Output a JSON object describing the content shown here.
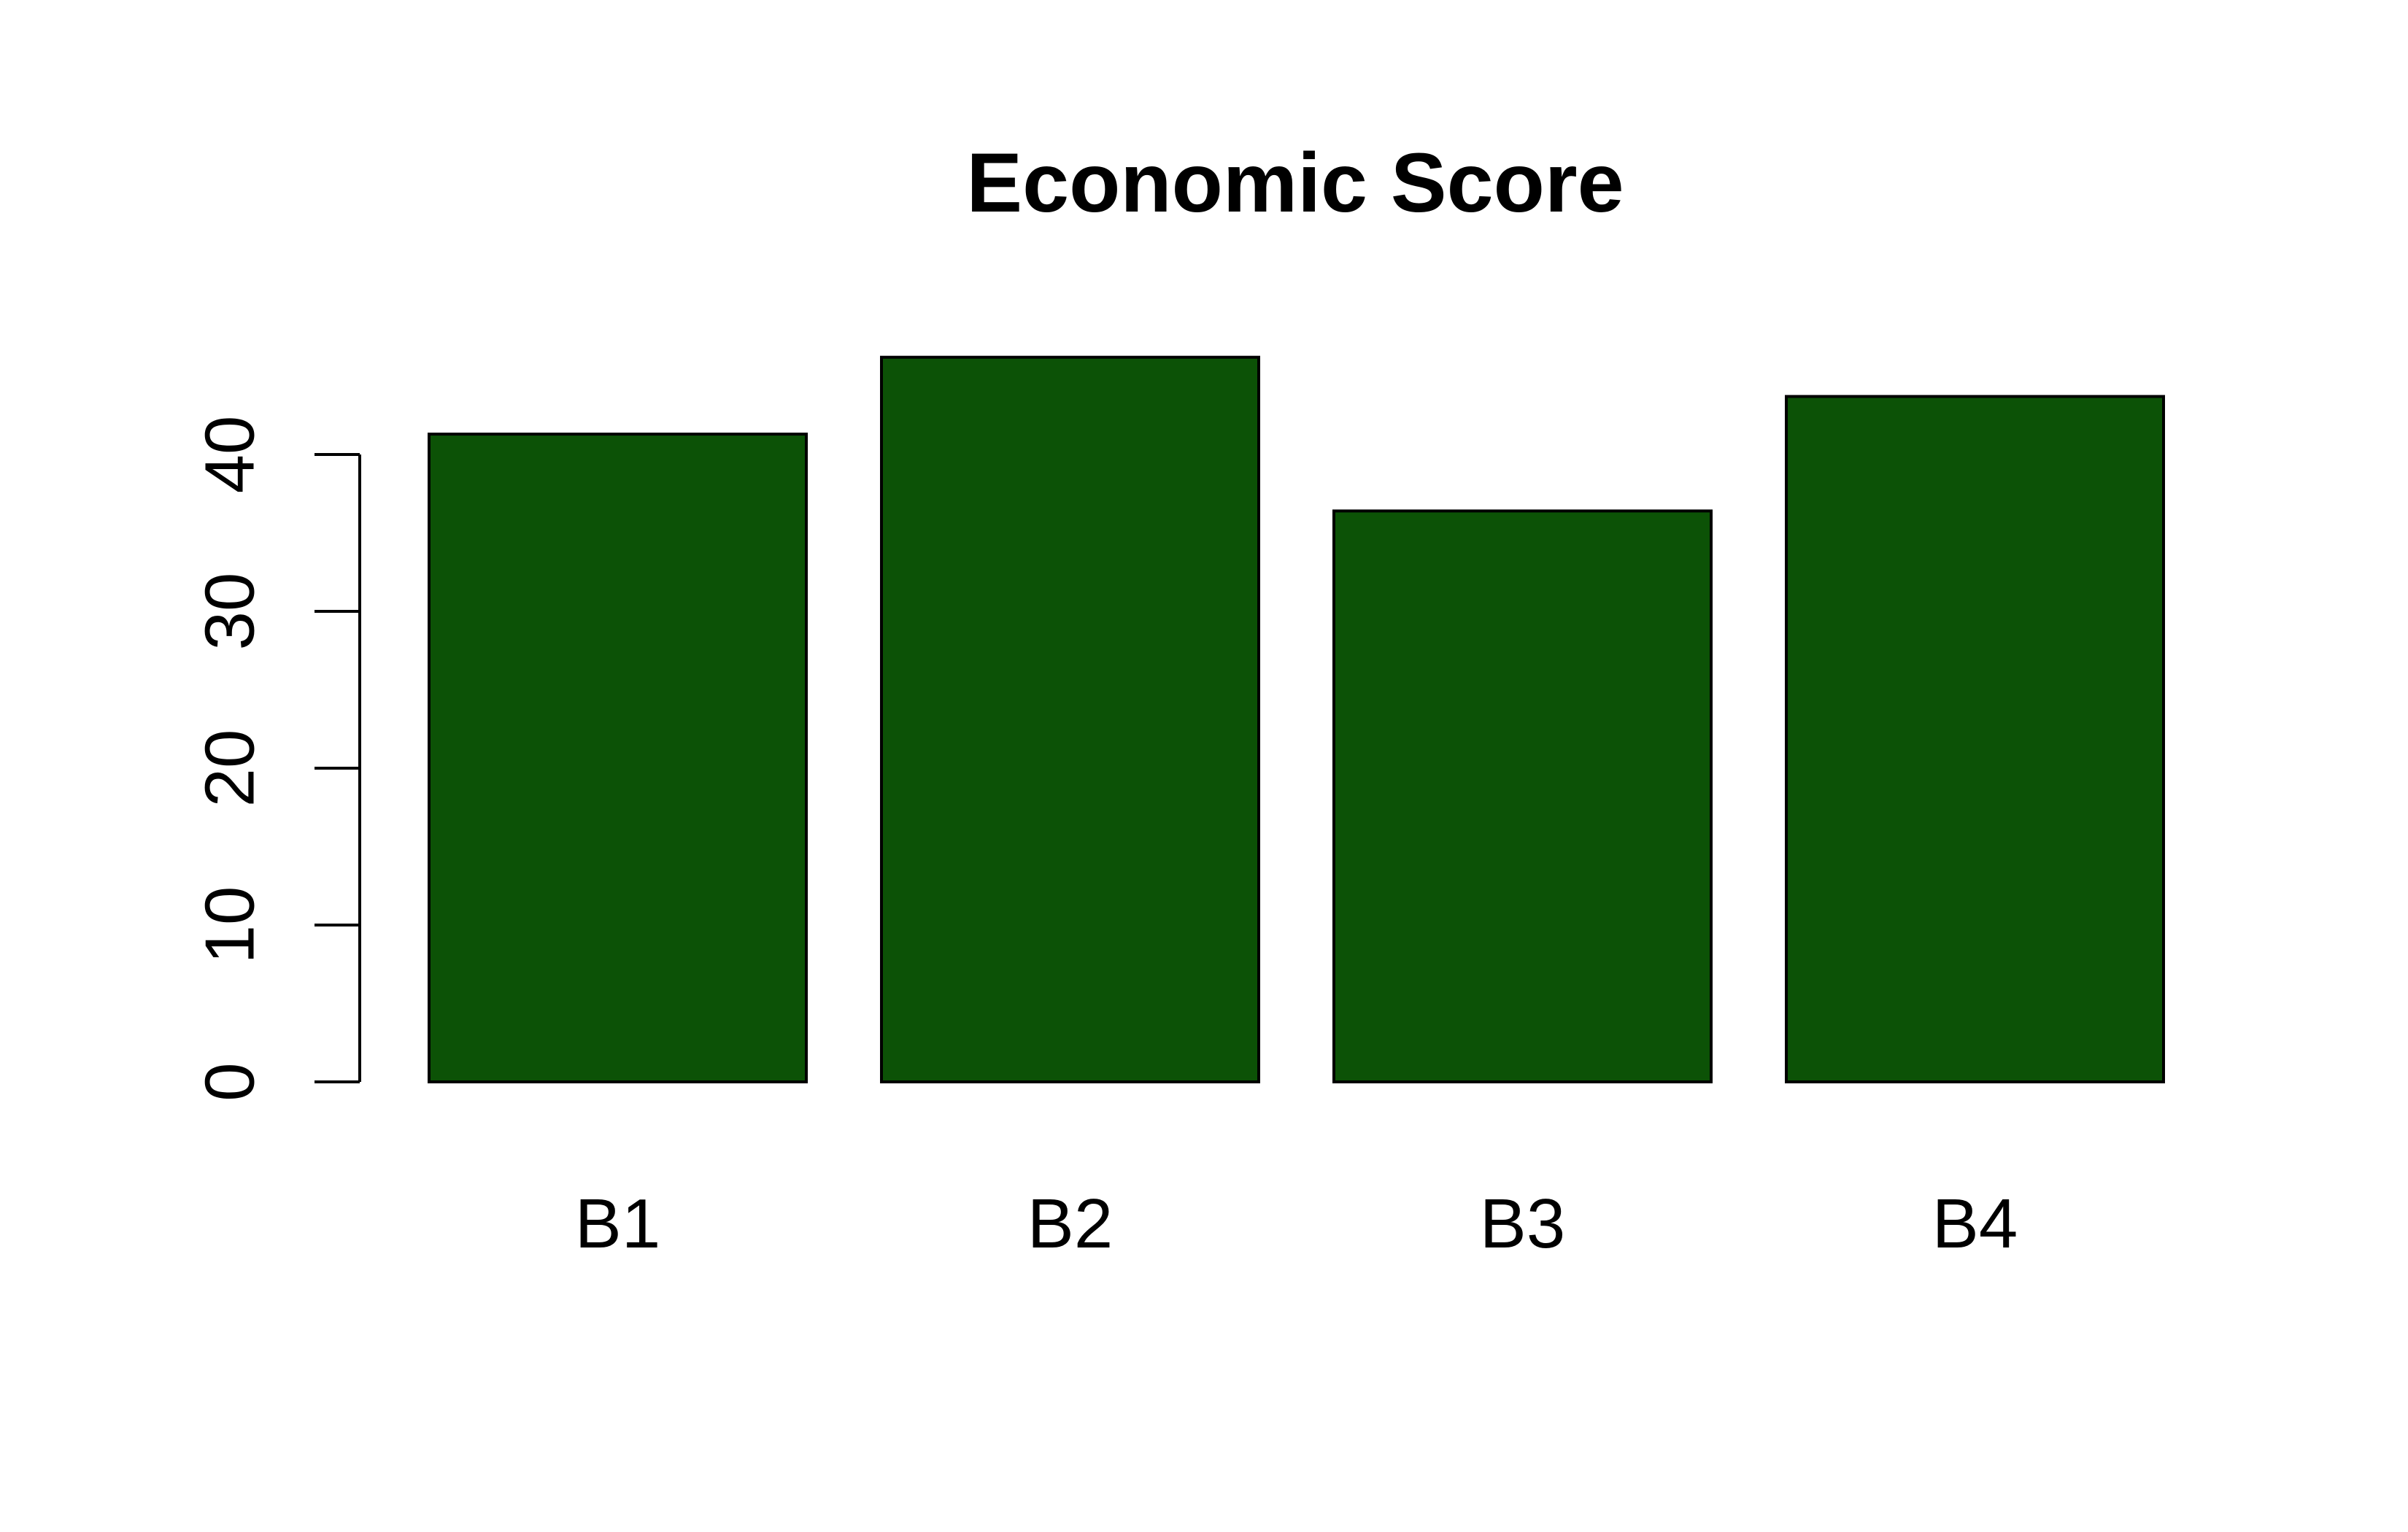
{
  "chart_data": {
    "type": "bar",
    "title": "Economic Score",
    "xlabel": "",
    "ylabel": "",
    "categories": [
      "B1",
      "B2",
      "B3",
      "B4"
    ],
    "values": [
      41.3,
      46.2,
      36.4,
      43.7
    ],
    "ylim": [
      0,
      46.2
    ],
    "yticks": [
      0,
      10,
      20,
      30,
      40
    ],
    "ytick_labels": [
      "0",
      "10",
      "20",
      "30",
      "40"
    ],
    "grid": false,
    "legend": "none",
    "colors": {
      "bar_fill": "#0c5206",
      "bar_stroke": "#000000",
      "axis": "#000000",
      "background": "#ffffff"
    }
  }
}
